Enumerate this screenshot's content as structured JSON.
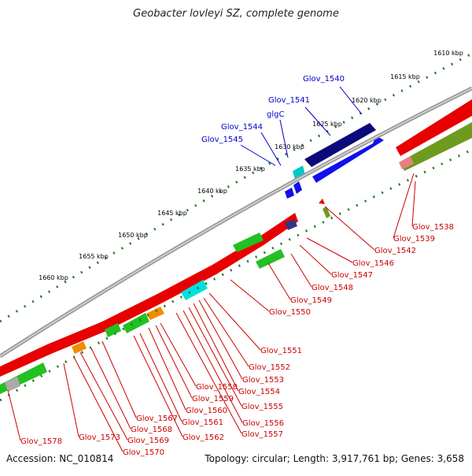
{
  "title": "Geobacter lovleyi SZ, complete genome",
  "footer": {
    "accession": "Accession: NC_010814",
    "summary": "Topology: circular; Length: 3,917,761 bp; Genes: 3,658"
  },
  "colors": {
    "top_strand_label": "#0000cc",
    "bottom_strand_label": "#cc0000",
    "dot_track": "#1e7a1e",
    "backbone": "#9a9a9a"
  },
  "ticks": [
    {
      "label": "1610 kbp"
    },
    {
      "label": "1615 kbp"
    },
    {
      "label": "1620 kbp"
    },
    {
      "label": "1625 kbp"
    },
    {
      "label": "1630 kbp"
    },
    {
      "label": "1635 kbp"
    },
    {
      "label": "1640 kbp"
    },
    {
      "label": "1645 kbp"
    },
    {
      "label": "1650 kbp"
    },
    {
      "label": "1655 kbp"
    },
    {
      "label": "1660 kbp"
    }
  ],
  "top_genes": [
    {
      "label": "Glov_1540"
    },
    {
      "label": "Glov_1541"
    },
    {
      "label": "glgC"
    },
    {
      "label": "Glov_1544"
    },
    {
      "label": "Glov_1545"
    }
  ],
  "bottom_genes": [
    {
      "label": "Glov_1538"
    },
    {
      "label": "Glov_1539"
    },
    {
      "label": "Glov_1542"
    },
    {
      "label": "Glov_1546"
    },
    {
      "label": "Glov_1547"
    },
    {
      "label": "Glov_1548"
    },
    {
      "label": "Glov_1549"
    },
    {
      "label": "Glov_1550"
    },
    {
      "label": "Glov_1551"
    },
    {
      "label": "Glov_1552"
    },
    {
      "label": "Glov_1553"
    },
    {
      "label": "Glov_1554"
    },
    {
      "label": "Glov_1555"
    },
    {
      "label": "Glov_1556"
    },
    {
      "label": "Glov_1557"
    },
    {
      "label": "Glov_1558"
    },
    {
      "label": "Glov_1559"
    },
    {
      "label": "Glov_1560"
    },
    {
      "label": "Glov_1561"
    },
    {
      "label": "Glov_1562"
    },
    {
      "label": "Glov_1567"
    },
    {
      "label": "Glov_1568"
    },
    {
      "label": "Glov_1569"
    },
    {
      "label": "Glov_1570"
    },
    {
      "label": "Glov_1573"
    },
    {
      "label": "Glov_1578"
    }
  ]
}
